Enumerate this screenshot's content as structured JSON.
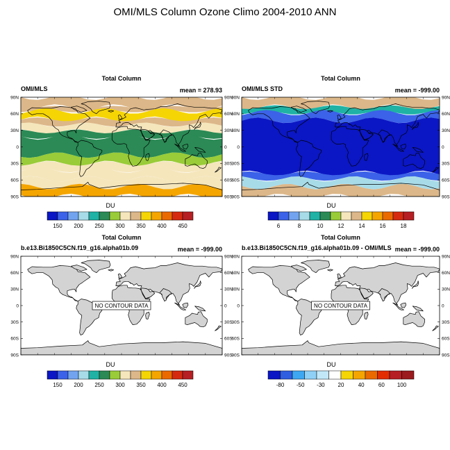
{
  "title": "OMI/MLS Column Ozone Climo 2004-2010 ANN",
  "colors": {
    "ozone_scale": [
      "#0b17c4",
      "#3b62e8",
      "#72a3ef",
      "#a8dbe8",
      "#1fb2a5",
      "#2b8a55",
      "#99cc38",
      "#f5e6bc",
      "#dcb789",
      "#f5d504",
      "#f4a500",
      "#ea6a00",
      "#d62a10",
      "#b61f23"
    ],
    "std_scale": [
      "#0b17c4",
      "#3b62e8",
      "#72a3ef",
      "#a8dbe8",
      "#1fb2a5",
      "#2b8a55",
      "#99cc38",
      "#f5e6bc",
      "#dcb789",
      "#f5d504",
      "#f4a500",
      "#ea6a00",
      "#d62a10",
      "#b61f23"
    ],
    "diff_scale": [
      "#0b17c4",
      "#2f5ee0",
      "#3da7f2",
      "#8fd0f6",
      "#c2e8f8",
      "#ffffff",
      "#f5d504",
      "#f4a500",
      "#ea6a00",
      "#e22d00",
      "#b61f23",
      "#9b1b1e"
    ],
    "land_fill": "#d3d3d3"
  },
  "chart_data": [
    {
      "type": "heatmap",
      "top_title": "Total Column",
      "left_label": "OMI/MLS",
      "right_label": "mean = 278.93",
      "yticks": [
        "90N",
        "60N",
        "30N",
        "0",
        "30S",
        "60S",
        "90S"
      ],
      "colorbar_label": "DU",
      "colorbar_ticks": [
        "150",
        "200",
        "250",
        "300",
        "350",
        "400",
        "450"
      ],
      "colorbar_levels": 14,
      "palette": "ozone_scale",
      "bands": [
        {
          "lat_from": 90,
          "lat_to": 72,
          "value": 350
        },
        {
          "lat_from": 72,
          "lat_to": 65,
          "value": 330
        },
        {
          "lat_from": 65,
          "lat_to": 50,
          "value": 375
        },
        {
          "lat_from": 50,
          "lat_to": 40,
          "value": 330
        },
        {
          "lat_from": 40,
          "lat_to": 28,
          "value": 300
        },
        {
          "lat_from": 28,
          "lat_to": 18,
          "value": 270
        },
        {
          "lat_from": 18,
          "lat_to": -15,
          "value": 255
        },
        {
          "lat_from": -15,
          "lat_to": -30,
          "value": 275
        },
        {
          "lat_from": -30,
          "lat_to": -42,
          "value": 300
        },
        {
          "lat_from": -42,
          "lat_to": -58,
          "value": 325
        },
        {
          "lat_from": -58,
          "lat_to": -72,
          "value": 305
        },
        {
          "lat_from": -72,
          "lat_to": -90,
          "value": 400
        }
      ]
    },
    {
      "type": "heatmap",
      "top_title": "Total Column",
      "left_label": "OMI/MLS STD",
      "right_label": "mean = -999.00",
      "yticks": [
        "90N",
        "60N",
        "30N",
        "0",
        "30S",
        "60S",
        "90S"
      ],
      "colorbar_label": "DU",
      "colorbar_ticks": [
        "6",
        "8",
        "10",
        "12",
        "14",
        "16",
        "18"
      ],
      "colorbar_levels": 14,
      "palette": "std_scale",
      "bands": [
        {
          "lat_from": 90,
          "lat_to": 72,
          "value": 14
        },
        {
          "lat_from": 72,
          "lat_to": 62,
          "value": 9
        },
        {
          "lat_from": 62,
          "lat_to": 48,
          "value": 6
        },
        {
          "lat_from": 48,
          "lat_to": -48,
          "value": 4
        },
        {
          "lat_from": -48,
          "lat_to": -58,
          "value": 6
        },
        {
          "lat_from": -58,
          "lat_to": -72,
          "value": 8
        },
        {
          "lat_from": -72,
          "lat_to": -90,
          "value": 14
        }
      ]
    },
    {
      "type": "heatmap",
      "top_title": "Total Column",
      "left_label": "b.e13.Bi1850C5CN.f19_g16.alpha01b.09",
      "right_label": "mean = -999.00",
      "annotation": "NO CONTOUR DATA",
      "yticks": [
        "90N",
        "60N",
        "30N",
        "0",
        "30S",
        "60S",
        "90S"
      ],
      "colorbar_label": "DU",
      "colorbar_ticks": [
        "150",
        "200",
        "250",
        "300",
        "350",
        "400",
        "450"
      ],
      "colorbar_levels": 14,
      "palette": "ozone_scale",
      "bands": []
    },
    {
      "type": "heatmap",
      "top_title": "Total Column",
      "left_label": "b.e13.Bi1850C5CN.f19_g16.alpha01b.09 - OMI/MLS",
      "right_label": "mean = -999.00",
      "annotation": "NO CONTOUR DATA",
      "yticks": [
        "90N",
        "60N",
        "30N",
        "0",
        "30S",
        "60S",
        "90S"
      ],
      "colorbar_label": "DU",
      "colorbar_ticks": [
        "-80",
        "-50",
        "-30",
        "20",
        "40",
        "60",
        "100"
      ],
      "colorbar_levels": 12,
      "palette": "diff_scale",
      "bands": []
    }
  ]
}
